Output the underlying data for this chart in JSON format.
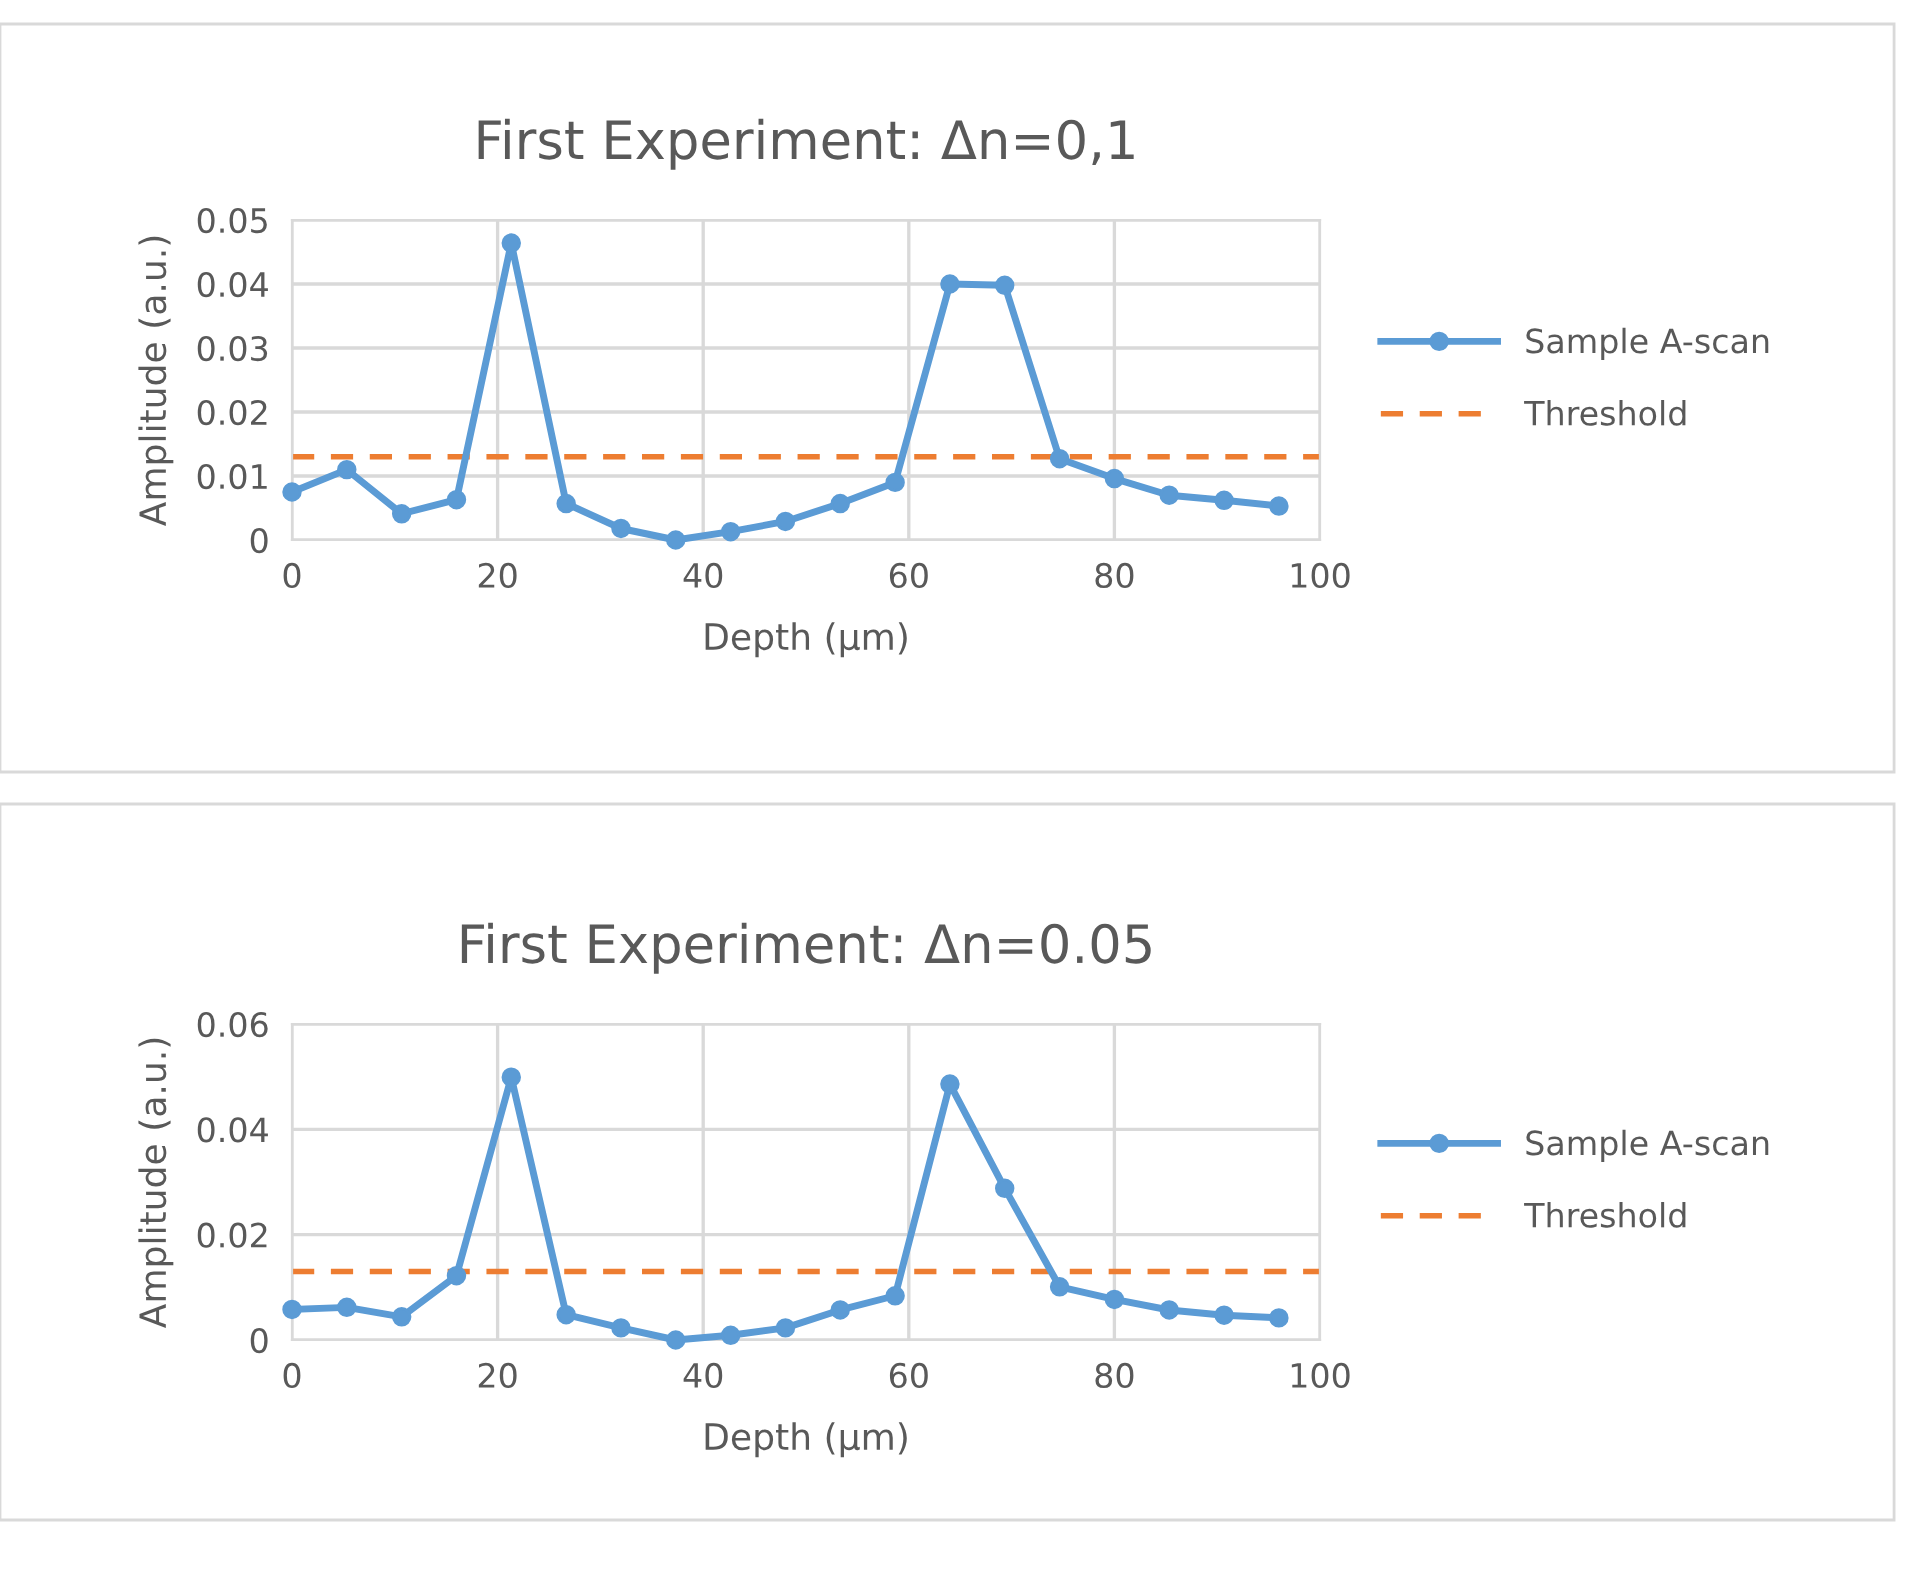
{
  "chart_data": [
    {
      "type": "line",
      "title": "First Experiment: Δn=0,1",
      "xlabel": "Depth (µm)",
      "ylabel": "Amplitude (a.u.)",
      "xlim": [
        0,
        100
      ],
      "xticks": [
        0,
        20,
        40,
        60,
        80,
        100
      ],
      "ylim": [
        0,
        0.05
      ],
      "yticks": [
        0,
        0.01,
        0.02,
        0.03,
        0.04,
        0.05
      ],
      "grid": true,
      "legend": "right",
      "marker": "circle",
      "line_style": "solid",
      "series": [
        {
          "name": "Sample A-scan",
          "color": "#5b9bd5",
          "x": [
            0,
            5.33,
            10.67,
            16,
            21.33,
            26.67,
            32,
            37.33,
            42.67,
            48,
            53.33,
            58.67,
            64,
            69.33,
            74.67,
            80,
            85.33,
            90.67,
            96
          ],
          "values": [
            0.0075,
            0.011,
            0.0041,
            0.0063,
            0.0464,
            0.0057,
            0.0018,
            0,
            0.0013,
            0.0029,
            0.0057,
            0.009,
            0.04,
            0.0398,
            0.0127,
            0.0096,
            0.007,
            0.0062,
            0.0053
          ]
        }
      ],
      "ref_lines": [
        {
          "axis": "y",
          "value": 0.013,
          "label": "Threshold",
          "color": "#ed7d31",
          "line_style": "dashed"
        }
      ]
    },
    {
      "type": "line",
      "title": "First Experiment: Δn=0.05",
      "xlabel": "Depth (µm)",
      "ylabel": "Amplitude (a.u.)",
      "xlim": [
        0,
        100
      ],
      "xticks": [
        0,
        20,
        40,
        60,
        80,
        100
      ],
      "ylim": [
        0,
        0.06
      ],
      "yticks": [
        0,
        0.02,
        0.04,
        0.06
      ],
      "grid": true,
      "legend": "right",
      "marker": "circle",
      "line_style": "solid",
      "series": [
        {
          "name": "Sample A-scan",
          "color": "#5b9bd5",
          "x": [
            0,
            5.33,
            10.67,
            16,
            21.33,
            26.67,
            32,
            37.33,
            42.67,
            48,
            53.33,
            58.67,
            64,
            69.33,
            74.67,
            80,
            85.33,
            90.67,
            96
          ],
          "values": [
            0.0058,
            0.0062,
            0.0044,
            0.0122,
            0.0499,
            0.0048,
            0.0023,
            0,
            0.0009,
            0.0023,
            0.0057,
            0.0084,
            0.0486,
            0.0288,
            0.0101,
            0.0077,
            0.0057,
            0.0047,
            0.0042
          ]
        }
      ],
      "ref_lines": [
        {
          "axis": "y",
          "value": 0.013,
          "label": "Threshold",
          "color": "#ed7d31",
          "line_style": "dashed"
        }
      ]
    }
  ]
}
